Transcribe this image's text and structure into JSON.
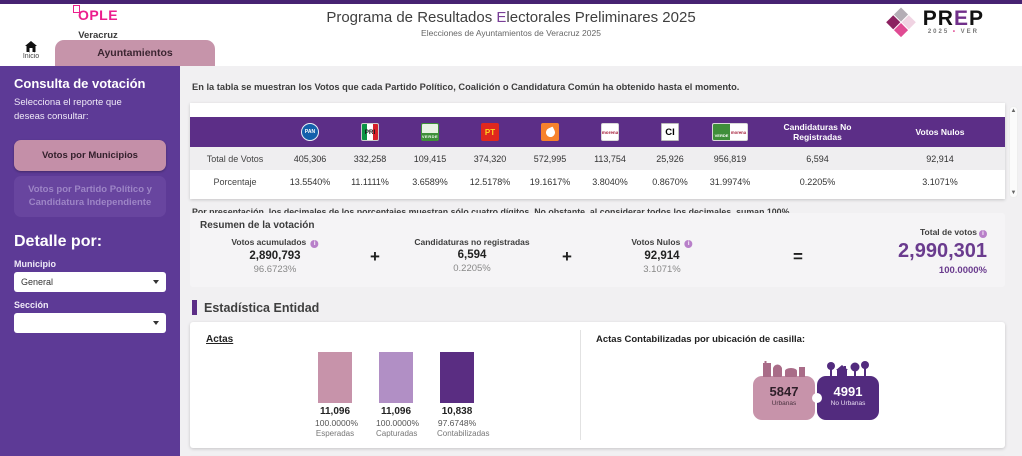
{
  "header": {
    "ople": {
      "name": "OPLE",
      "state": "Veracruz"
    },
    "title": {
      "pre": "Programa de Resultados ",
      "accent": "E",
      "post": "lectorales Preliminares 2025"
    },
    "subtitle": "Elecciones de Ayuntamientos de Veracruz 2025",
    "prep": {
      "pre": "PR",
      "accent": "E",
      "post": "P",
      "year": "2025",
      "dot": "•",
      "state": "VER"
    }
  },
  "nav": {
    "home": "Inicio",
    "active_tab": "Ayuntamientos"
  },
  "sidebar": {
    "title": "Consulta de votación",
    "subtitle": "Selecciona el reporte que deseas consultar:",
    "button_active": "Votos por Municipios",
    "button_inactive": "Votos por Partido Político y Candidatura Independiente",
    "detail_title": "Detalle por:",
    "municipio_label": "Municipio",
    "municipio_value": "General",
    "seccion_label": "Sección",
    "seccion_value": ""
  },
  "main": {
    "intro": "En la tabla se muestran los Votos que cada Partido Político, Coalición o Candidatura Común ha obtenido hasta el momento.",
    "table": {
      "row1_label": "Total de Votos",
      "row2_label": "Porcentaje",
      "columns": [
        {
          "id": "pan",
          "total": "405,306",
          "pct": "13.5540%"
        },
        {
          "id": "pri",
          "total": "332,258",
          "pct": "11.1111%"
        },
        {
          "id": "pvem",
          "total": "109,415",
          "pct": "3.6589%"
        },
        {
          "id": "pt",
          "total": "374,320",
          "pct": "12.5178%"
        },
        {
          "id": "mc",
          "total": "572,995",
          "pct": "19.1617%"
        },
        {
          "id": "morena",
          "total": "113,754",
          "pct": "3.8040%"
        },
        {
          "id": "ci",
          "total": "25,926",
          "pct": "0.8670%"
        },
        {
          "id": "pvem-morena",
          "total": "956,819",
          "pct": "31.9974%"
        },
        {
          "id": "no-registradas",
          "header_label": "Candidaturas No Registradas",
          "total": "6,594",
          "pct": "0.2205%"
        },
        {
          "id": "nulos",
          "header_label": "Votos Nulos",
          "total": "92,914",
          "pct": "3.1071%"
        }
      ],
      "footnote": "Por presentación, los decimales de los porcentajes muestran sólo cuatro dígitos. No obstante, al considerar todos los decimales, suman 100%."
    },
    "resumen": {
      "title": "Resumen de la votación",
      "items": [
        {
          "label": "Votos acumulados",
          "info": true,
          "value": "2,890,793",
          "pct": "96.6723%"
        },
        {
          "label": "Candidaturas no registradas",
          "info": false,
          "value": "6,594",
          "pct": "0.2205%"
        },
        {
          "label": "Votos Nulos",
          "info": true,
          "value": "92,914",
          "pct": "3.1071%"
        }
      ],
      "plus": "+",
      "equals": "=",
      "total": {
        "label": "Total de votos",
        "info": true,
        "value": "2,990,301",
        "pct": "100.0000%"
      }
    },
    "estadistica": {
      "title": "Estadística Entidad",
      "actas_label": "Actas",
      "chart_data": {
        "type": "bar",
        "categories": [
          "Esperadas",
          "Capturadas",
          "Contabilizadas"
        ],
        "values": [
          11096,
          11096,
          10838
        ],
        "display": [
          {
            "value": "11,096",
            "pct": "100.0000%",
            "label": "Esperadas",
            "color": "#c793aa",
            "height_pct": 100
          },
          {
            "value": "11,096",
            "pct": "100.0000%",
            "label": "Capturadas",
            "color": "#b18fc5",
            "height_pct": 100
          },
          {
            "value": "10,838",
            "pct": "97.6748%",
            "label": "Contabilizadas",
            "color": "#5a2d82",
            "height_pct": 97.7
          }
        ]
      },
      "casillas": {
        "title": "Actas Contabilizadas por ubicación de casilla:",
        "urban": {
          "value": "5847",
          "label": "Urbanas"
        },
        "rural": {
          "value": "4991",
          "label": "No Urbanas"
        }
      }
    }
  },
  "colors": {
    "sidebar_purple": "#5d3a96",
    "table_header_purple": "#5c2e87",
    "mauve": "#c48fa8",
    "total_purple": "#6a3b8e",
    "ople_pink": "#ec1e8d"
  }
}
